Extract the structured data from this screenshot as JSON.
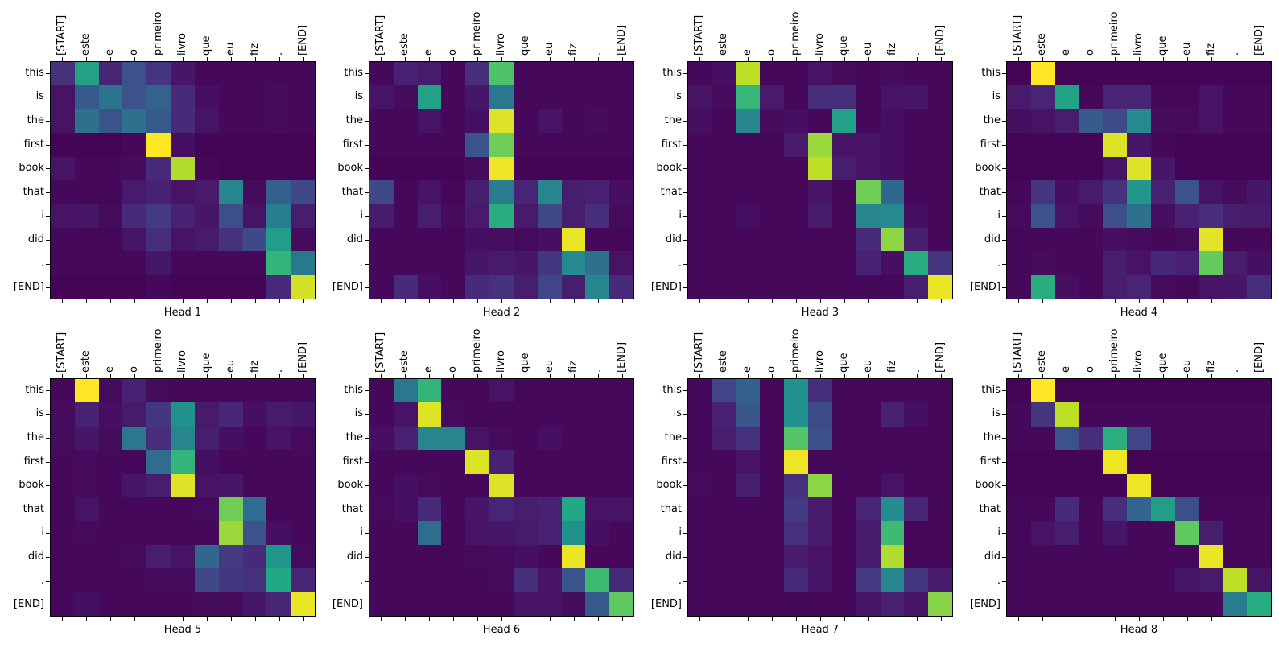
{
  "figure": {
    "background": "#ffffff"
  },
  "chart_data": {
    "type": "heatmap",
    "description": "Transformer attention weights per head; source tokens (Portuguese) on top axis, output tokens (English) on left axis",
    "colormap": {
      "name": "viridis",
      "stops": [
        [
          0.0,
          "#440154"
        ],
        [
          0.1,
          "#482475"
        ],
        [
          0.2,
          "#414487"
        ],
        [
          0.3,
          "#355f8d"
        ],
        [
          0.4,
          "#2a788e"
        ],
        [
          0.5,
          "#21918c"
        ],
        [
          0.6,
          "#22a884"
        ],
        [
          0.7,
          "#44bf70"
        ],
        [
          0.8,
          "#7ad151"
        ],
        [
          0.9,
          "#bddf26"
        ],
        [
          1.0,
          "#fde725"
        ]
      ]
    },
    "value_range": [
      0,
      1
    ],
    "x_tokens": [
      "[START]",
      "este",
      "e",
      "o",
      "primeiro",
      "livro",
      "que",
      "eu",
      "fiz",
      ".",
      "[END]"
    ],
    "y_tokens": [
      "this",
      "is",
      "the",
      "first",
      "book",
      "that",
      "i",
      "did",
      ".",
      "[END]"
    ],
    "heads": [
      {
        "title": "Head 1",
        "matrix": [
          [
            0.14,
            0.57,
            0.1,
            0.25,
            0.15,
            0.06,
            0.02,
            0.02,
            0.02,
            0.02,
            0.02
          ],
          [
            0.05,
            0.28,
            0.38,
            0.25,
            0.31,
            0.12,
            0.04,
            0.02,
            0.02,
            0.03,
            0.02
          ],
          [
            0.05,
            0.37,
            0.26,
            0.37,
            0.28,
            0.12,
            0.05,
            0.02,
            0.02,
            0.03,
            0.02
          ],
          [
            0.01,
            0.01,
            0.01,
            0.02,
            1.0,
            0.04,
            0.01,
            0.01,
            0.01,
            0.01,
            0.01
          ],
          [
            0.05,
            0.02,
            0.02,
            0.03,
            0.12,
            0.88,
            0.02,
            0.01,
            0.01,
            0.01,
            0.01
          ],
          [
            0.02,
            0.02,
            0.02,
            0.07,
            0.09,
            0.05,
            0.07,
            0.45,
            0.03,
            0.3,
            0.22
          ],
          [
            0.05,
            0.06,
            0.03,
            0.12,
            0.17,
            0.09,
            0.06,
            0.24,
            0.05,
            0.42,
            0.08
          ],
          [
            0.02,
            0.02,
            0.02,
            0.05,
            0.13,
            0.05,
            0.07,
            0.14,
            0.22,
            0.55,
            0.03
          ],
          [
            0.02,
            0.02,
            0.02,
            0.02,
            0.06,
            0.02,
            0.02,
            0.02,
            0.02,
            0.65,
            0.4
          ],
          [
            0.01,
            0.01,
            0.01,
            0.01,
            0.02,
            0.01,
            0.01,
            0.01,
            0.01,
            0.12,
            0.93
          ]
        ]
      },
      {
        "title": "Head 2",
        "matrix": [
          [
            0.02,
            0.09,
            0.07,
            0.02,
            0.13,
            0.72,
            0.02,
            0.02,
            0.02,
            0.02,
            0.02
          ],
          [
            0.05,
            0.03,
            0.57,
            0.02,
            0.06,
            0.4,
            0.02,
            0.02,
            0.02,
            0.02,
            0.02
          ],
          [
            0.02,
            0.02,
            0.05,
            0.02,
            0.04,
            0.95,
            0.02,
            0.05,
            0.02,
            0.03,
            0.02
          ],
          [
            0.02,
            0.02,
            0.02,
            0.02,
            0.25,
            0.78,
            0.02,
            0.02,
            0.02,
            0.02,
            0.02
          ],
          [
            0.01,
            0.01,
            0.01,
            0.01,
            0.03,
            0.98,
            0.01,
            0.01,
            0.01,
            0.01,
            0.01
          ],
          [
            0.22,
            0.02,
            0.05,
            0.02,
            0.08,
            0.42,
            0.1,
            0.45,
            0.08,
            0.09,
            0.04
          ],
          [
            0.07,
            0.02,
            0.08,
            0.03,
            0.07,
            0.62,
            0.07,
            0.22,
            0.08,
            0.13,
            0.03
          ],
          [
            0.02,
            0.02,
            0.02,
            0.02,
            0.04,
            0.04,
            0.03,
            0.04,
            0.97,
            0.02,
            0.02
          ],
          [
            0.02,
            0.02,
            0.02,
            0.02,
            0.06,
            0.07,
            0.06,
            0.16,
            0.47,
            0.37,
            0.05
          ],
          [
            0.02,
            0.12,
            0.04,
            0.02,
            0.12,
            0.14,
            0.08,
            0.2,
            0.08,
            0.45,
            0.12
          ]
        ]
      },
      {
        "title": "Head 3",
        "matrix": [
          [
            0.02,
            0.04,
            0.9,
            0.02,
            0.02,
            0.05,
            0.03,
            0.02,
            0.03,
            0.02,
            0.02
          ],
          [
            0.05,
            0.03,
            0.66,
            0.07,
            0.02,
            0.13,
            0.13,
            0.02,
            0.05,
            0.06,
            0.02
          ],
          [
            0.04,
            0.02,
            0.45,
            0.03,
            0.04,
            0.02,
            0.57,
            0.02,
            0.04,
            0.02,
            0.02
          ],
          [
            0.02,
            0.02,
            0.02,
            0.02,
            0.07,
            0.85,
            0.05,
            0.05,
            0.04,
            0.02,
            0.02
          ],
          [
            0.02,
            0.02,
            0.02,
            0.02,
            0.02,
            0.9,
            0.08,
            0.05,
            0.04,
            0.02,
            0.02
          ],
          [
            0.02,
            0.02,
            0.02,
            0.02,
            0.02,
            0.05,
            0.02,
            0.78,
            0.33,
            0.02,
            0.02
          ],
          [
            0.02,
            0.02,
            0.04,
            0.02,
            0.02,
            0.07,
            0.02,
            0.45,
            0.47,
            0.04,
            0.02
          ],
          [
            0.02,
            0.02,
            0.02,
            0.02,
            0.02,
            0.02,
            0.02,
            0.12,
            0.83,
            0.08,
            0.02
          ],
          [
            0.02,
            0.02,
            0.02,
            0.02,
            0.02,
            0.02,
            0.02,
            0.09,
            0.04,
            0.62,
            0.15
          ],
          [
            0.02,
            0.02,
            0.02,
            0.02,
            0.02,
            0.02,
            0.02,
            0.02,
            0.02,
            0.08,
            0.97
          ]
        ]
      },
      {
        "title": "Head 4",
        "matrix": [
          [
            0.01,
            1.0,
            0.01,
            0.01,
            0.01,
            0.01,
            0.01,
            0.01,
            0.01,
            0.01,
            0.01
          ],
          [
            0.07,
            0.1,
            0.58,
            0.02,
            0.1,
            0.1,
            0.02,
            0.02,
            0.05,
            0.02,
            0.02
          ],
          [
            0.04,
            0.05,
            0.08,
            0.28,
            0.23,
            0.47,
            0.03,
            0.03,
            0.05,
            0.02,
            0.02
          ],
          [
            0.01,
            0.01,
            0.01,
            0.01,
            0.95,
            0.06,
            0.02,
            0.01,
            0.01,
            0.01,
            0.01
          ],
          [
            0.01,
            0.01,
            0.01,
            0.01,
            0.05,
            0.95,
            0.06,
            0.01,
            0.01,
            0.01,
            0.01
          ],
          [
            0.02,
            0.15,
            0.04,
            0.07,
            0.14,
            0.52,
            0.09,
            0.25,
            0.05,
            0.03,
            0.06
          ],
          [
            0.03,
            0.25,
            0.05,
            0.03,
            0.24,
            0.37,
            0.04,
            0.09,
            0.13,
            0.08,
            0.07
          ],
          [
            0.02,
            0.02,
            0.02,
            0.02,
            0.04,
            0.03,
            0.02,
            0.03,
            0.96,
            0.02,
            0.02
          ],
          [
            0.02,
            0.03,
            0.02,
            0.02,
            0.08,
            0.05,
            0.11,
            0.09,
            0.76,
            0.08,
            0.04
          ],
          [
            0.02,
            0.62,
            0.04,
            0.02,
            0.08,
            0.1,
            0.03,
            0.02,
            0.05,
            0.06,
            0.13
          ]
        ]
      },
      {
        "title": "Head 5",
        "matrix": [
          [
            0.02,
            1.0,
            0.03,
            0.09,
            0.03,
            0.02,
            0.02,
            0.02,
            0.02,
            0.02,
            0.02
          ],
          [
            0.03,
            0.09,
            0.04,
            0.07,
            0.16,
            0.5,
            0.07,
            0.11,
            0.04,
            0.07,
            0.06
          ],
          [
            0.03,
            0.06,
            0.03,
            0.4,
            0.13,
            0.45,
            0.08,
            0.04,
            0.02,
            0.05,
            0.03
          ],
          [
            0.02,
            0.03,
            0.02,
            0.02,
            0.35,
            0.65,
            0.04,
            0.02,
            0.02,
            0.02,
            0.02
          ],
          [
            0.02,
            0.03,
            0.02,
            0.06,
            0.08,
            0.95,
            0.05,
            0.06,
            0.02,
            0.02,
            0.02
          ],
          [
            0.02,
            0.05,
            0.02,
            0.02,
            0.02,
            0.02,
            0.03,
            0.78,
            0.35,
            0.02,
            0.02
          ],
          [
            0.02,
            0.03,
            0.02,
            0.02,
            0.02,
            0.02,
            0.02,
            0.85,
            0.25,
            0.04,
            0.02
          ],
          [
            0.02,
            0.02,
            0.02,
            0.03,
            0.08,
            0.05,
            0.33,
            0.17,
            0.12,
            0.52,
            0.03
          ],
          [
            0.02,
            0.02,
            0.02,
            0.02,
            0.03,
            0.03,
            0.22,
            0.16,
            0.14,
            0.6,
            0.1
          ],
          [
            0.02,
            0.04,
            0.02,
            0.02,
            0.02,
            0.02,
            0.03,
            0.03,
            0.06,
            0.1,
            0.97
          ]
        ]
      },
      {
        "title": "Head 6",
        "matrix": [
          [
            0.02,
            0.4,
            0.65,
            0.02,
            0.02,
            0.05,
            0.02,
            0.02,
            0.02,
            0.02,
            0.02
          ],
          [
            0.02,
            0.05,
            0.95,
            0.03,
            0.02,
            0.02,
            0.02,
            0.02,
            0.02,
            0.02,
            0.02
          ],
          [
            0.04,
            0.09,
            0.45,
            0.45,
            0.05,
            0.03,
            0.02,
            0.04,
            0.02,
            0.02,
            0.02
          ],
          [
            0.02,
            0.02,
            0.02,
            0.02,
            0.95,
            0.09,
            0.02,
            0.02,
            0.02,
            0.02,
            0.02
          ],
          [
            0.02,
            0.04,
            0.03,
            0.02,
            0.02,
            0.95,
            0.02,
            0.02,
            0.02,
            0.02,
            0.02
          ],
          [
            0.03,
            0.04,
            0.12,
            0.02,
            0.06,
            0.1,
            0.08,
            0.09,
            0.6,
            0.05,
            0.05
          ],
          [
            0.02,
            0.02,
            0.35,
            0.02,
            0.05,
            0.06,
            0.07,
            0.09,
            0.5,
            0.04,
            0.02
          ],
          [
            0.02,
            0.02,
            0.02,
            0.02,
            0.03,
            0.03,
            0.04,
            0.02,
            0.97,
            0.02,
            0.02
          ],
          [
            0.02,
            0.02,
            0.02,
            0.02,
            0.02,
            0.03,
            0.13,
            0.05,
            0.26,
            0.68,
            0.12
          ],
          [
            0.02,
            0.02,
            0.02,
            0.02,
            0.02,
            0.02,
            0.05,
            0.05,
            0.03,
            0.28,
            0.75
          ]
        ]
      },
      {
        "title": "Head 7",
        "matrix": [
          [
            0.02,
            0.2,
            0.3,
            0.02,
            0.5,
            0.13,
            0.02,
            0.02,
            0.02,
            0.02,
            0.02
          ],
          [
            0.02,
            0.09,
            0.27,
            0.02,
            0.5,
            0.23,
            0.02,
            0.02,
            0.09,
            0.04,
            0.02
          ],
          [
            0.02,
            0.08,
            0.14,
            0.02,
            0.73,
            0.24,
            0.02,
            0.02,
            0.02,
            0.02,
            0.02
          ],
          [
            0.02,
            0.02,
            0.05,
            0.02,
            0.98,
            0.02,
            0.02,
            0.02,
            0.02,
            0.02,
            0.02
          ],
          [
            0.03,
            0.02,
            0.08,
            0.02,
            0.14,
            0.83,
            0.02,
            0.02,
            0.05,
            0.02,
            0.02
          ],
          [
            0.02,
            0.02,
            0.02,
            0.02,
            0.17,
            0.07,
            0.02,
            0.1,
            0.48,
            0.1,
            0.02
          ],
          [
            0.02,
            0.02,
            0.02,
            0.02,
            0.14,
            0.07,
            0.02,
            0.07,
            0.68,
            0.02,
            0.02
          ],
          [
            0.02,
            0.02,
            0.02,
            0.02,
            0.07,
            0.05,
            0.02,
            0.07,
            0.88,
            0.02,
            0.02
          ],
          [
            0.02,
            0.02,
            0.02,
            0.02,
            0.12,
            0.06,
            0.02,
            0.17,
            0.45,
            0.16,
            0.07
          ],
          [
            0.02,
            0.02,
            0.02,
            0.02,
            0.02,
            0.02,
            0.02,
            0.05,
            0.09,
            0.05,
            0.82
          ]
        ]
      },
      {
        "title": "Head 8",
        "matrix": [
          [
            0.01,
            1.0,
            0.01,
            0.01,
            0.01,
            0.01,
            0.01,
            0.01,
            0.01,
            0.01,
            0.01
          ],
          [
            0.02,
            0.15,
            0.9,
            0.02,
            0.02,
            0.02,
            0.02,
            0.02,
            0.02,
            0.02,
            0.02
          ],
          [
            0.02,
            0.02,
            0.25,
            0.13,
            0.63,
            0.2,
            0.02,
            0.02,
            0.02,
            0.02,
            0.02
          ],
          [
            0.01,
            0.01,
            0.01,
            0.01,
            0.98,
            0.01,
            0.01,
            0.01,
            0.01,
            0.01,
            0.01
          ],
          [
            0.01,
            0.01,
            0.01,
            0.01,
            0.01,
            0.98,
            0.01,
            0.01,
            0.01,
            0.01,
            0.01
          ],
          [
            0.02,
            0.02,
            0.12,
            0.02,
            0.13,
            0.32,
            0.55,
            0.24,
            0.02,
            0.02,
            0.02
          ],
          [
            0.02,
            0.05,
            0.08,
            0.02,
            0.06,
            0.02,
            0.02,
            0.75,
            0.08,
            0.02,
            0.02
          ],
          [
            0.02,
            0.02,
            0.02,
            0.02,
            0.02,
            0.02,
            0.02,
            0.02,
            0.97,
            0.02,
            0.02
          ],
          [
            0.02,
            0.02,
            0.02,
            0.02,
            0.02,
            0.02,
            0.02,
            0.06,
            0.07,
            0.9,
            0.05
          ],
          [
            0.02,
            0.02,
            0.02,
            0.02,
            0.02,
            0.02,
            0.02,
            0.02,
            0.02,
            0.42,
            0.62
          ]
        ]
      }
    ]
  }
}
